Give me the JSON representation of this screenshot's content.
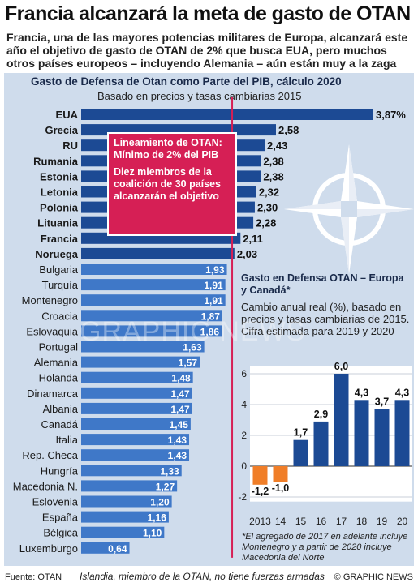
{
  "headline": "Francia alcanzará la meta de gasto de OTAN",
  "deck": "Francia, una de las mayores potencias militares de Europa, alcanzará este año el objetivo de gasto de OTAN de 2% que busca EUA, pero muchos otros países europeos – incluyendo Alemania – aún están muy a la zaga",
  "note": {
    "line1": "Lineamiento de OTAN: Mínimo de 2% del PIB",
    "line2": "Diez miembros de la coalición de 30 países alcanzarán el objetivo"
  },
  "inset": {
    "title": "Gasto en Defensa OTAN – Europa y Canadá*",
    "subtitle": "Cambio anual real (%), basado en precios y tasas cambiarias de 2015. Cifra estimada para 2019 y 2020",
    "footnote": "*El agregado de 2017 en adelante incluye Montenegro y a partir de 2020 incluye Macedonia del Norte"
  },
  "footer": {
    "source": "Fuente: OTAN",
    "note": "Islandia, miembro de la OTAN, no tiene fuerzas armadas",
    "credit": "© GRAPHIC NEWS"
  },
  "watermark": "GRAPHIC NEWS",
  "colors": {
    "dark_bar": "#1c4a94",
    "light_bar": "#3f78c8",
    "panel": "#cfdcec",
    "accent": "#d61f55",
    "negative": "#f07e28"
  },
  "chart_data": [
    {
      "type": "bar",
      "orientation": "horizontal",
      "title": "Gasto de Defensa de Otan como Parte del PIB, cálculo 2020",
      "subtitle": "Basado en precios y tasas cambiarias 2015",
      "reference_line": 2,
      "categories": [
        "EUA",
        "Grecia",
        "RU",
        "Rumania",
        "Estonia",
        "Letonia",
        "Polonia",
        "Lituania",
        "Francia",
        "Noruega",
        "Bulgaria",
        "Turquía",
        "Montenegro",
        "Croacia",
        "Eslovaquia",
        "Portugal",
        "Alemania",
        "Holanda",
        "Dinamarca",
        "Albania",
        "Canadá",
        "Italia",
        "Rep. Checa",
        "Hungría",
        "Macedonia N.",
        "Eslovenia",
        "España",
        "Bélgica",
        "Luxemburgo"
      ],
      "values": [
        3.87,
        2.58,
        2.43,
        2.38,
        2.38,
        2.32,
        2.3,
        2.28,
        2.11,
        2.03,
        1.93,
        1.91,
        1.91,
        1.87,
        1.86,
        1.63,
        1.57,
        1.48,
        1.47,
        1.47,
        1.45,
        1.43,
        1.43,
        1.33,
        1.27,
        1.2,
        1.16,
        1.1,
        0.64
      ],
      "value_labels": [
        "3,87%",
        "2,58",
        "2,43",
        "2,38",
        "2,38",
        "2,32",
        "2,30",
        "2,28",
        "2,11",
        "2,03",
        "1,93",
        "1,91",
        "1,91",
        "1,87",
        "1,86",
        "1,63",
        "1,57",
        "1,48",
        "1,47",
        "1,47",
        "1,45",
        "1,43",
        "1,43",
        "1,33",
        "1,27",
        "1,20",
        "1,16",
        "1,10",
        "0,64"
      ]
    },
    {
      "type": "bar",
      "x": [
        "2013",
        "14",
        "15",
        "16",
        "17",
        "18",
        "19",
        "20"
      ],
      "values": [
        -1.2,
        -1.0,
        1.7,
        2.9,
        6.0,
        4.3,
        3.7,
        4.3
      ],
      "value_labels": [
        "-1,2",
        "-1,0",
        "1,7",
        "2,9",
        "6,0",
        "4,3",
        "3,7",
        "4,3"
      ],
      "ylim": [
        -2,
        6
      ],
      "yticks": [
        "-2",
        "0",
        "2",
        "4",
        "6"
      ],
      "grid": true
    }
  ]
}
